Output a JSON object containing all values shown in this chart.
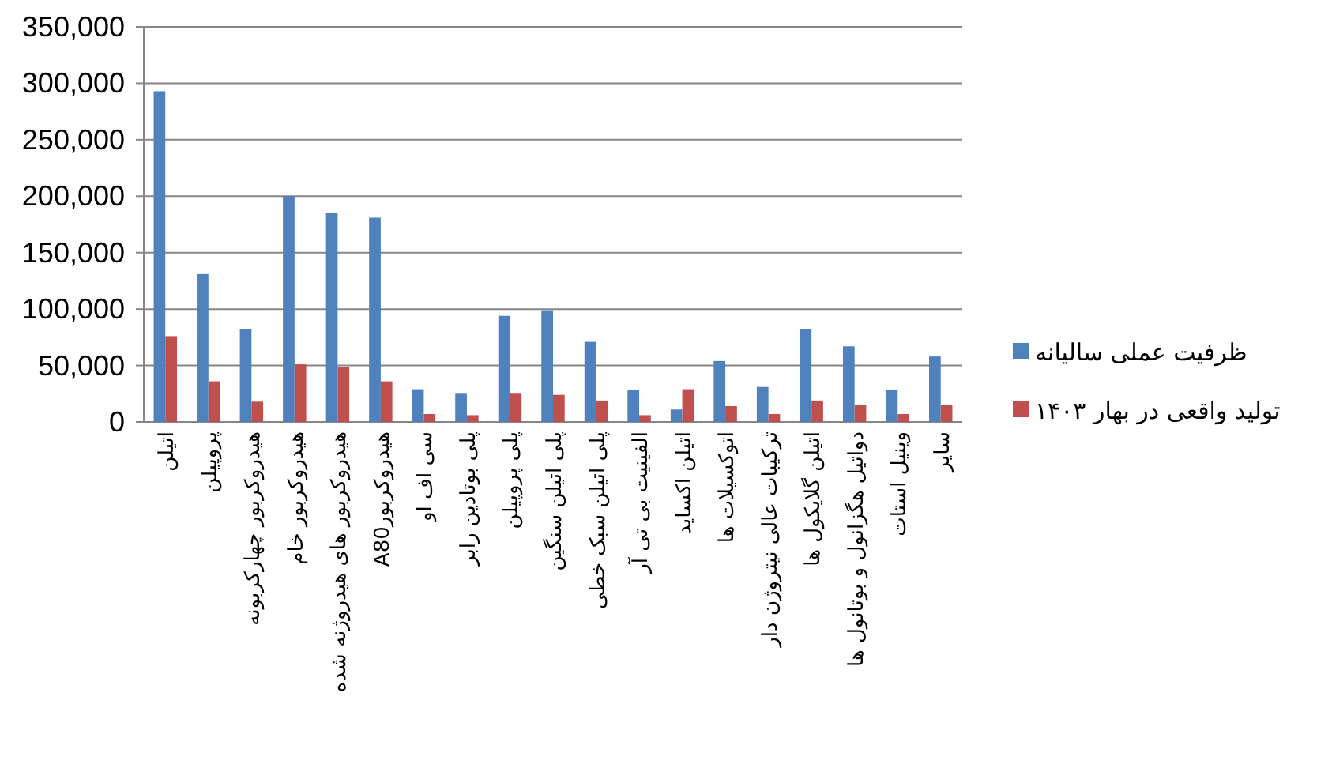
{
  "chart_data": {
    "type": "bar",
    "categories": [
      "اتیلن",
      "پروپیلن",
      "هیدروکربور چهارکربونه",
      "هیدروکربور خام",
      "هیدروکربور های هیدروژنه شده",
      "هیدروکربورA80",
      "سی اف او",
      "پلی بوتادین رابر",
      "پلی پروپیلن",
      "پلی اتیلن سنگین",
      "پلی اتیلن سبک خطی",
      "الفینیت بی تی آر",
      "اتیلن اکساید",
      "اتوکسیلات ها",
      "ترکیبات عالی نیتروژن دار",
      "اتیلن گلایکول ها",
      "دواتیل هگزانول و بوتانول ها",
      "وینیل استات",
      "سایر"
    ],
    "series": [
      {
        "name": "ظرفیت عملی سالیانه",
        "color": "#4f81bd",
        "values": [
          293000,
          131000,
          82000,
          200000,
          185000,
          181000,
          29000,
          25000,
          94000,
          99000,
          71000,
          28000,
          11000,
          54000,
          31000,
          82000,
          67000,
          28000,
          58000
        ]
      },
      {
        "name": "تولید واقعی در بهار ۱۴۰۳",
        "color": "#c0504d",
        "values": [
          76000,
          36000,
          18000,
          51000,
          49000,
          36000,
          7000,
          6000,
          25000,
          24000,
          19000,
          6000,
          29000,
          14000,
          7000,
          19000,
          15000,
          7000,
          15000
        ]
      }
    ],
    "ylim": [
      0,
      350000
    ],
    "yticks": [
      0,
      {
        "value": 50000,
        "label": "50,000"
      },
      {
        "value": 100000,
        "label": "100,000"
      },
      {
        "value": 150000,
        "label": "150,000"
      },
      {
        "value": 200000,
        "label": "200,000"
      },
      {
        "value": 250000,
        "label": "250,000"
      },
      {
        "value": 300000,
        "label": "300,000"
      },
      {
        "value": 350000,
        "label": "350,000"
      }
    ],
    "grid": "y",
    "legend": "right"
  }
}
